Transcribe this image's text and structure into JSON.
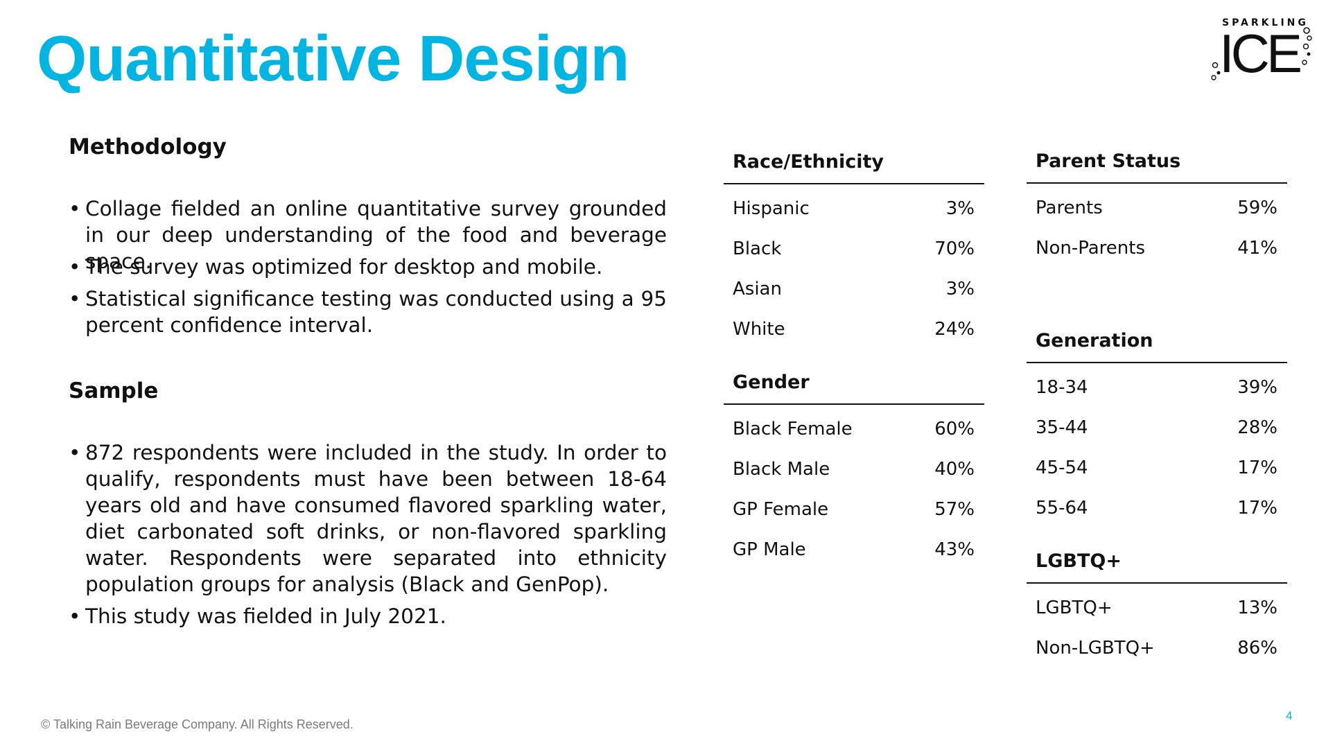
{
  "title": "Quantitative Design",
  "colors": {
    "accent": "#00B5E2",
    "text": "#111111",
    "footer": "#7A7A7A"
  },
  "logo": {
    "top_text": "SPARKLING",
    "main_text": "ICE",
    "icon": "bubbles-icon"
  },
  "methodology": {
    "heading": "Methodology",
    "bullets": [
      "Collage fielded an online quantitative survey grounded in our deep understanding of the food and beverage space.",
      "The survey was optimized for desktop and mobile.",
      "Statistical significance testing was conducted using a 95 percent confidence interval."
    ]
  },
  "sample": {
    "heading": "Sample",
    "bullets": [
      "872 respondents were included in the study. In order to qualify, respondents must have been between 18-64 years old and have consumed flavored sparkling water, diet carbonated soft drinks, or non-flavored sparkling water. Respondents were separated into ethnicity population groups for analysis (Black and GenPop).",
      "This study was fielded in July 2021."
    ]
  },
  "tables": {
    "race": {
      "title": "Race/Ethnicity",
      "rows": [
        {
          "label": "Hispanic",
          "value": "3%"
        },
        {
          "label": "Black",
          "value": "70%"
        },
        {
          "label": "Asian",
          "value": "3%"
        },
        {
          "label": "White",
          "value": "24%"
        }
      ]
    },
    "gender": {
      "title": "Gender",
      "rows": [
        {
          "label": "Black Female",
          "value": "60%"
        },
        {
          "label": "Black Male",
          "value": "40%"
        },
        {
          "label": "GP Female",
          "value": "57%"
        },
        {
          "label": "GP Male",
          "value": "43%"
        }
      ]
    },
    "parent": {
      "title": "Parent Status",
      "rows": [
        {
          "label": "Parents",
          "value": "59%"
        },
        {
          "label": "Non-Parents",
          "value": "41%"
        }
      ]
    },
    "generation": {
      "title": "Generation",
      "rows": [
        {
          "label": "18-34",
          "value": "39%"
        },
        {
          "label": "35-44",
          "value": "28%"
        },
        {
          "label": "45-54",
          "value": "17%"
        },
        {
          "label": "55-64",
          "value": "17%"
        }
      ]
    },
    "lgbtq": {
      "title": "LGBTQ+",
      "rows": [
        {
          "label": "LGBTQ+",
          "value": "13%"
        },
        {
          "label": "Non-LGBTQ+",
          "value": "86%"
        }
      ]
    }
  },
  "footer": "© Talking Rain Beverage Company. All Rights Reserved.",
  "page_number": "4"
}
